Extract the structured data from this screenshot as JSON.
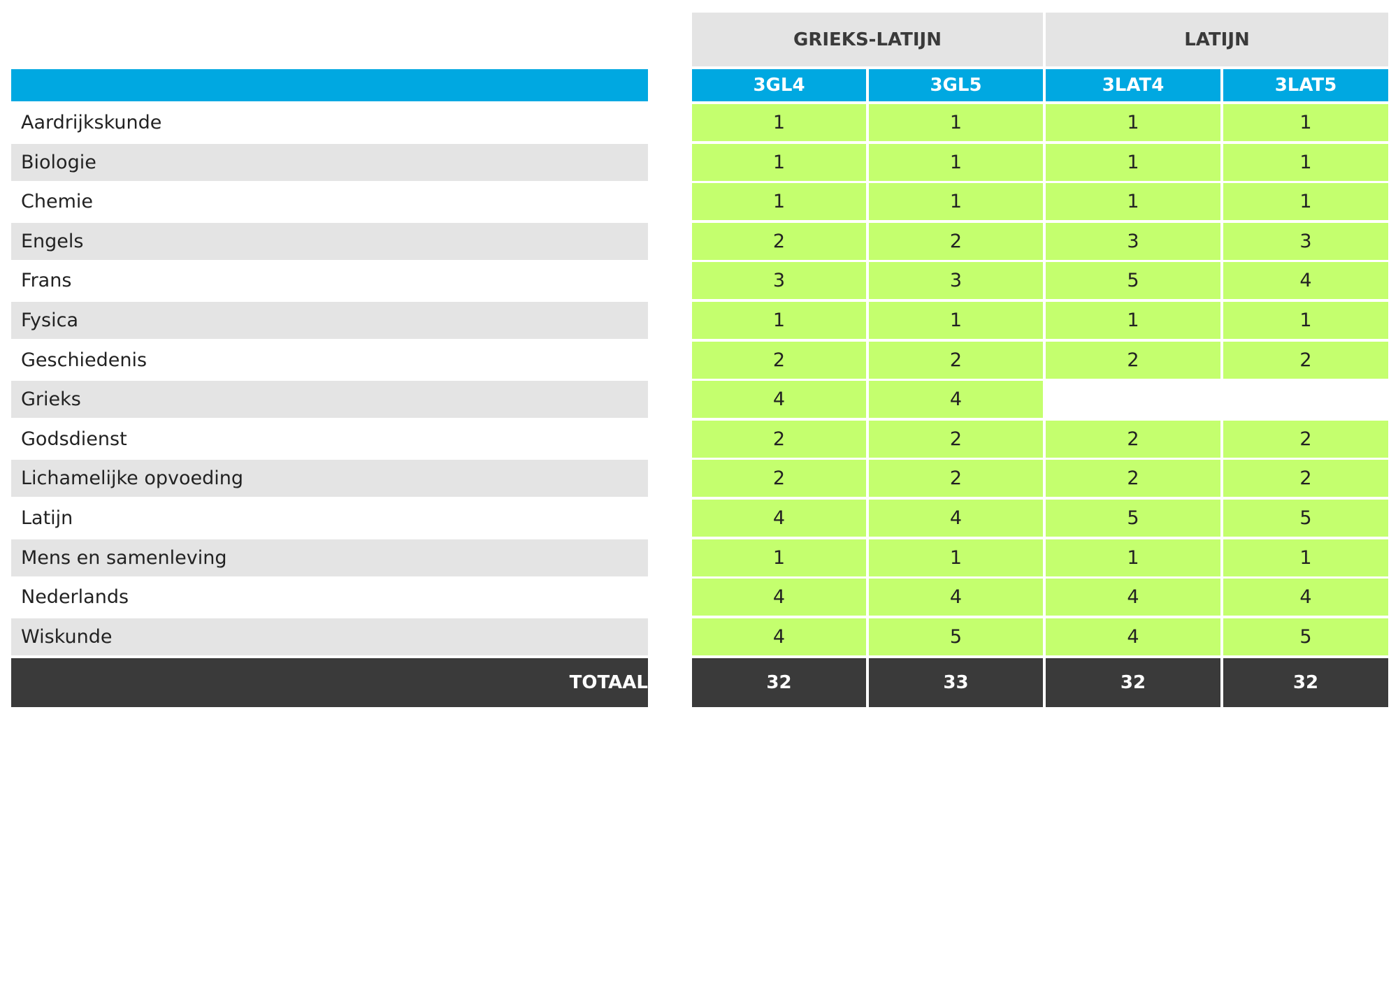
{
  "chart_data": {
    "type": "table",
    "groups": [
      {
        "name": "GRIEKS-LATIJN",
        "columns": [
          "3GL4",
          "3GL5"
        ]
      },
      {
        "name": "LATIJN",
        "columns": [
          "3LAT4",
          "3LAT5"
        ]
      }
    ],
    "columns": [
      "3GL4",
      "3GL5",
      "3LAT4",
      "3LAT5"
    ],
    "rows": [
      {
        "subject": "Aardrijkskunde",
        "values": [
          "1",
          "1",
          "1",
          "1"
        ]
      },
      {
        "subject": "Biologie",
        "values": [
          "1",
          "1",
          "1",
          "1"
        ]
      },
      {
        "subject": "Chemie",
        "values": [
          "1",
          "1",
          "1",
          "1"
        ]
      },
      {
        "subject": "Engels",
        "values": [
          "2",
          "2",
          "3",
          "3"
        ]
      },
      {
        "subject": "Frans",
        "values": [
          "3",
          "3",
          "5",
          "4"
        ]
      },
      {
        "subject": "Fysica",
        "values": [
          "1",
          "1",
          "1",
          "1"
        ]
      },
      {
        "subject": "Geschiedenis",
        "values": [
          "2",
          "2",
          "2",
          "2"
        ]
      },
      {
        "subject": "Grieks",
        "values": [
          "4",
          "4",
          "",
          ""
        ]
      },
      {
        "subject": "Godsdienst",
        "values": [
          "2",
          "2",
          "2",
          "2"
        ]
      },
      {
        "subject": "Lichamelijke opvoeding",
        "values": [
          "2",
          "2",
          "2",
          "2"
        ]
      },
      {
        "subject": "Latijn",
        "values": [
          "4",
          "4",
          "5",
          "5"
        ]
      },
      {
        "subject": "Mens en samenleving",
        "values": [
          "1",
          "1",
          "1",
          "1"
        ]
      },
      {
        "subject": "Nederlands",
        "values": [
          "4",
          "4",
          "4",
          "4"
        ]
      },
      {
        "subject": "Wiskunde",
        "values": [
          "4",
          "5",
          "4",
          "5"
        ]
      }
    ],
    "total": {
      "label": "TOTAAL",
      "values": [
        "32",
        "33",
        "32",
        "32"
      ]
    },
    "colors": {
      "header_blue": "#00a8e1",
      "group_gray": "#e4e4e4",
      "stripe_gray": "#e4e4e4",
      "value_green": "#c4ff6e",
      "total_dark": "#3a3a3a"
    }
  }
}
